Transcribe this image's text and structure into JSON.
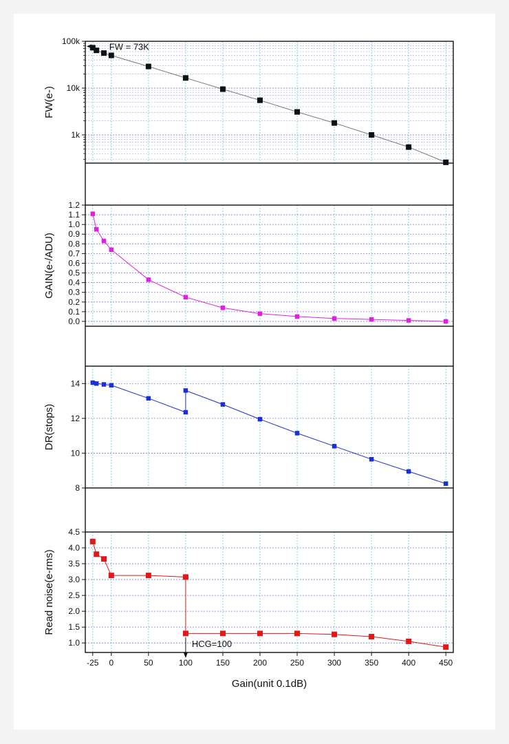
{
  "chart_data": [
    {
      "id": "fw",
      "type": "line",
      "yscale": "log",
      "ylabel": "FW(e-)",
      "ylim": [
        250,
        100000
      ],
      "yticks": [
        1000,
        10000,
        100000
      ],
      "ytick_labels": [
        "1k",
        "10k",
        "100k"
      ],
      "color": "#111111",
      "line_color": "#777777",
      "x": [
        -25,
        -20,
        -10,
        0,
        50,
        100,
        150,
        200,
        250,
        300,
        350,
        400,
        450
      ],
      "values": [
        73000,
        64000,
        56000,
        50000,
        29000,
        16500,
        9500,
        5500,
        3100,
        1800,
        1000,
        550,
        260
      ],
      "annotation": {
        "text": "FW = 73K",
        "arrow": "left"
      }
    },
    {
      "id": "gain",
      "type": "line",
      "ylabel": "GAIN(e-/ADU)",
      "ylim": [
        -0.05,
        1.2
      ],
      "yticks": [
        0.0,
        0.1,
        0.2,
        0.3,
        0.4,
        0.5,
        0.6,
        0.7,
        0.8,
        0.9,
        1.0,
        1.1,
        1.2
      ],
      "ytick_labels": [
        "0.0",
        "0.1",
        "0.2",
        "0.3",
        "0.4",
        "0.5",
        "0.6",
        "0.7",
        "0.8",
        "0.9",
        "1.0",
        "1.1",
        "1.2"
      ],
      "color": "#e020e0",
      "x": [
        -25,
        -20,
        -10,
        0,
        50,
        100,
        150,
        200,
        250,
        300,
        350,
        400,
        450
      ],
      "values": [
        1.11,
        0.95,
        0.83,
        0.74,
        0.43,
        0.25,
        0.14,
        0.08,
        0.05,
        0.03,
        0.02,
        0.01,
        0.0
      ]
    },
    {
      "id": "dr",
      "type": "line",
      "ylabel": "DR(stops)",
      "ylim": [
        8,
        15
      ],
      "yticks": [
        8,
        10,
        12,
        14
      ],
      "ytick_labels": [
        "8",
        "10",
        "12",
        "14"
      ],
      "color": "#1a2fd6",
      "x": [
        -25,
        -20,
        -10,
        0,
        50,
        100,
        100,
        150,
        200,
        250,
        300,
        350,
        400,
        450
      ],
      "values": [
        14.05,
        14.0,
        13.95,
        13.9,
        13.15,
        12.35,
        13.6,
        12.8,
        11.95,
        11.15,
        10.4,
        9.65,
        8.95,
        8.25
      ]
    },
    {
      "id": "rn",
      "type": "line",
      "ylabel": "Read noise(e-rms)",
      "xlabel": "Gain(unit 0.1dB)",
      "ylim": [
        0.7,
        4.5
      ],
      "yticks": [
        1.0,
        1.5,
        2.0,
        2.5,
        3.0,
        3.5,
        4.0,
        4.5
      ],
      "ytick_labels": [
        "1.0",
        "1.5",
        "2.0",
        "2.5",
        "3.0",
        "3.5",
        "4.0",
        "4.5"
      ],
      "color": "#e01818",
      "x": [
        -25,
        -20,
        -10,
        0,
        50,
        100,
        100,
        150,
        200,
        250,
        300,
        350,
        400,
        450
      ],
      "values": [
        4.2,
        3.8,
        3.65,
        3.13,
        3.13,
        3.08,
        1.3,
        1.3,
        1.3,
        1.3,
        1.27,
        1.2,
        1.05,
        0.87
      ],
      "annotation": {
        "text": "HCG=100",
        "arrow": "down"
      }
    }
  ],
  "x_axis": {
    "xlim": [
      -35,
      460
    ],
    "ticks": [
      -25,
      0,
      50,
      100,
      150,
      200,
      250,
      300,
      350,
      400,
      450
    ],
    "tick_labels": [
      "-25",
      "0",
      "50",
      "100",
      "150",
      "200",
      "250",
      "300",
      "350",
      "400",
      "450"
    ],
    "label": "Gain(unit 0.1dB)"
  },
  "colors": {
    "grid": "#7a7ad6",
    "vgrid": "#66d6ee",
    "axis": "#111111"
  }
}
